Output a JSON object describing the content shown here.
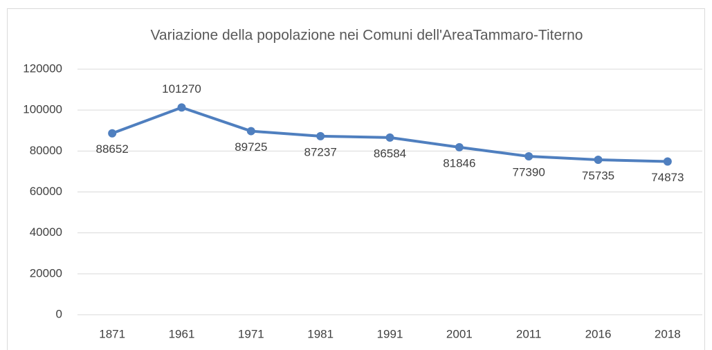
{
  "chart_data": {
    "type": "line",
    "title": "Variazione della popolazione nei Comuni dell'AreaTammaro-Titerno",
    "categories": [
      "1871",
      "1961",
      "1971",
      "1981",
      "1991",
      "2001",
      "2011",
      "2016",
      "2018"
    ],
    "series": [
      {
        "color": "#4f7fbf",
        "values": [
          88652,
          101270,
          89725,
          87237,
          86584,
          81846,
          77390,
          75735,
          74873
        ]
      }
    ],
    "ylim": [
      0,
      120000
    ],
    "yticks": [
      0,
      20000,
      40000,
      60000,
      80000,
      100000,
      120000
    ],
    "grid": true
  }
}
